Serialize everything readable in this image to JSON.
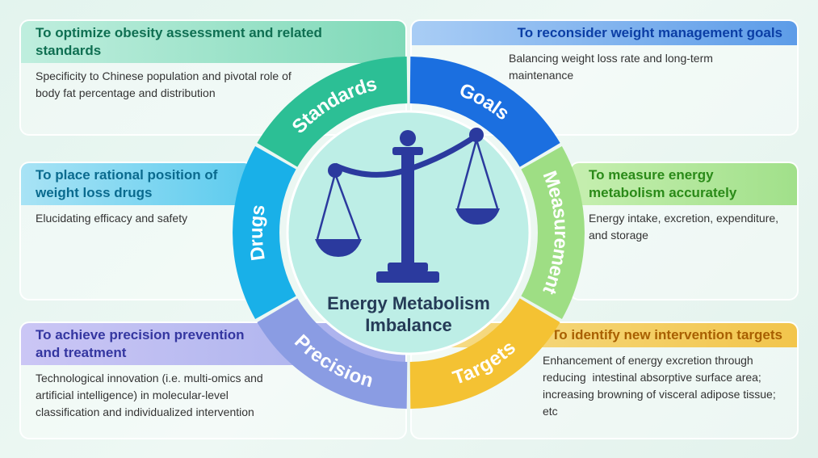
{
  "center": {
    "title": [
      "Energy Metabolism",
      "Imbalance"
    ]
  },
  "segments": [
    "Standards",
    "Goals",
    "Measurement",
    "Targets",
    "Precision",
    "Drugs"
  ],
  "panels": [
    {
      "title": "To optimize obesity assessment and related standards",
      "body": "Specificity to Chinese population and pivotal role of body fat percentage and distribution"
    },
    {
      "title": "To reconsider weight management goals",
      "body": "Balancing weight loss rate and long-term maintenance"
    },
    {
      "title": "To place rational position of weight loss drugs",
      "body": "Elucidating efficacy and safety"
    },
    {
      "title": "To measure energy metabolism accurately",
      "body": "Energy intake, excretion, expenditure, and storage"
    },
    {
      "title": "To achieve precision prevention and treatment",
      "body": "Technological innovation (i.e. multi-omics and artificial intelligence) in molecular-level classification and individualized intervention"
    },
    {
      "title": "To identify new intervention targets",
      "body": "Enhancement of energy excretion through reducing  intestinal absorptive surface area; increasing browning of visceral adipose tissue; etc"
    }
  ]
}
